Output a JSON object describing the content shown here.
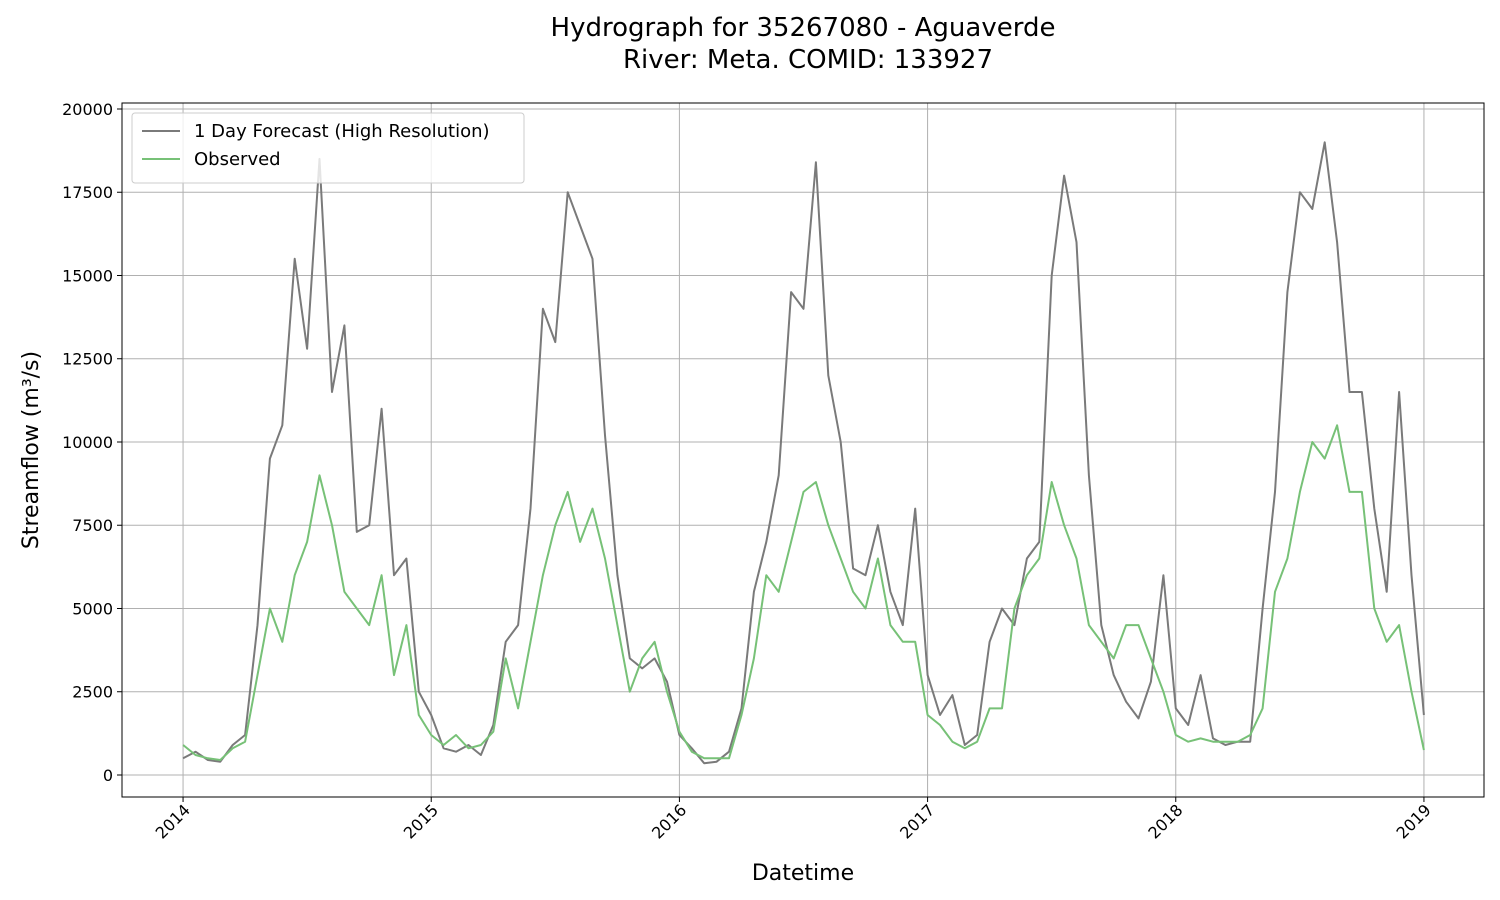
{
  "chart_data": {
    "type": "line",
    "title": "Hydrograph for 35267080 - Aguaverde",
    "subtitle": "River: Meta. COMID: 133927",
    "x_label": "Datetime",
    "y_label": "Streamflow (m³/s)",
    "x": [
      2014,
      2014.05,
      2014.1,
      2014.15,
      2014.2,
      2014.25,
      2014.3,
      2014.35,
      2014.4,
      2014.45,
      2014.5,
      2014.55,
      2014.6,
      2014.65,
      2014.7,
      2014.75,
      2014.8,
      2014.85,
      2014.9,
      2014.95,
      2015,
      2015.05,
      2015.1,
      2015.15,
      2015.2,
      2015.25,
      2015.3,
      2015.35,
      2015.4,
      2015.45,
      2015.5,
      2015.55,
      2015.6,
      2015.65,
      2015.7,
      2015.75,
      2015.8,
      2015.85,
      2015.9,
      2015.95,
      2016,
      2016.05,
      2016.1,
      2016.15,
      2016.2,
      2016.25,
      2016.3,
      2016.35,
      2016.4,
      2016.45,
      2016.5,
      2016.55,
      2016.6,
      2016.65,
      2016.7,
      2016.75,
      2016.8,
      2016.85,
      2016.9,
      2016.95,
      2017,
      2017.05,
      2017.1,
      2017.15,
      2017.2,
      2017.25,
      2017.3,
      2017.35,
      2017.4,
      2017.45,
      2017.5,
      2017.55,
      2017.6,
      2017.65,
      2017.7,
      2017.75,
      2017.8,
      2017.85,
      2017.9,
      2017.95,
      2018,
      2018.05,
      2018.1,
      2018.15,
      2018.2,
      2018.25,
      2018.3,
      2018.35,
      2018.4,
      2018.45,
      2018.5,
      2018.55,
      2018.6,
      2018.65,
      2018.7,
      2018.75,
      2018.8,
      2018.85,
      2018.9,
      2018.95,
      2019
    ],
    "series": [
      {
        "name": "1 Day Forecast (High Resolution)",
        "color": "#7a7a7a",
        "values": [
          500,
          700,
          450,
          400,
          900,
          1200,
          4500,
          9500,
          10500,
          15500,
          12800,
          18500,
          11500,
          13500,
          7300,
          7500,
          11000,
          6000,
          6500,
          2500,
          1800,
          800,
          700,
          900,
          600,
          1500,
          4000,
          4500,
          8000,
          14000,
          13000,
          17500,
          16500,
          15500,
          10200,
          6000,
          3500,
          3200,
          3500,
          2800,
          1200,
          800,
          350,
          400,
          700,
          2000,
          5500,
          7000,
          9000,
          14500,
          14000,
          18400,
          12000,
          10000,
          6200,
          6000,
          7500,
          5500,
          4500,
          8000,
          3000,
          1800,
          2400,
          900,
          1200,
          4000,
          5000,
          4500,
          6500,
          7000,
          15000,
          18000,
          16000,
          9000,
          4500,
          3000,
          2200,
          1700,
          2800,
          6000,
          2000,
          1500,
          3000,
          1100,
          900,
          1000,
          1000,
          5000,
          8500,
          14500,
          17500,
          17000,
          19000,
          16000,
          11500,
          11500,
          8000,
          5500,
          11500,
          6000,
          1800
        ]
      },
      {
        "name": "Observed",
        "color": "#77c177",
        "values": [
          900,
          600,
          500,
          450,
          800,
          1000,
          3000,
          5000,
          4000,
          6000,
          7000,
          9000,
          7500,
          5500,
          5000,
          4500,
          6000,
          3000,
          4500,
          1800,
          1200,
          900,
          1200,
          800,
          900,
          1300,
          3500,
          2000,
          4000,
          6000,
          7500,
          8500,
          7000,
          8000,
          6500,
          4500,
          2500,
          3500,
          4000,
          2500,
          1300,
          700,
          500,
          500,
          500,
          1800,
          3500,
          6000,
          5500,
          7000,
          8500,
          8800,
          7500,
          6500,
          5500,
          5000,
          6500,
          4500,
          4000,
          4000,
          1800,
          1500,
          1000,
          800,
          1000,
          2000,
          2000,
          5000,
          6000,
          6500,
          8800,
          7500,
          6500,
          4500,
          4000,
          3500,
          4500,
          4500,
          3500,
          2500,
          1200,
          1000,
          1100,
          1000,
          1000,
          1000,
          1200,
          2000,
          5500,
          6500,
          8500,
          10000,
          9500,
          10500,
          8500,
          8500,
          5000,
          4000,
          4500,
          2500,
          750
        ]
      }
    ],
    "xlim": [
      2013.754,
      2019.242
    ],
    "xticks": [
      2014,
      2015,
      2016,
      2017,
      2018,
      2019
    ],
    "ylim": [
      -661,
      20180
    ],
    "yticks": [
      0,
      2500,
      5000,
      7500,
      10000,
      12500,
      15000,
      17500,
      20000
    ],
    "grid": true,
    "legend": "upper left"
  }
}
